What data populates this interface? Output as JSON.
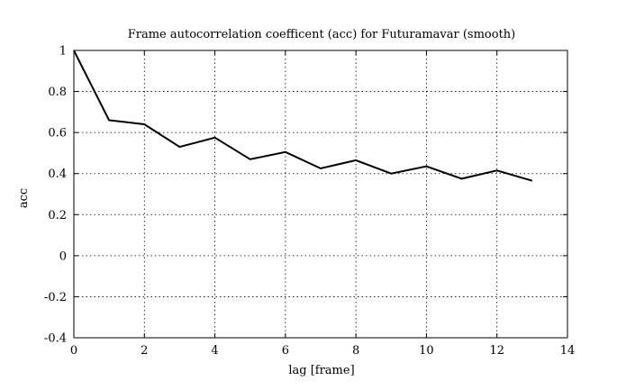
{
  "chart_data": {
    "type": "line",
    "title": "Frame autocorrelation coefficent (acc) for Futuramavar (smooth)",
    "xlabel": "lag [frame]",
    "ylabel": "acc",
    "xlim": [
      0,
      14
    ],
    "ylim": [
      -0.4,
      1
    ],
    "xticks": [
      0,
      2,
      4,
      6,
      8,
      10,
      12,
      14
    ],
    "yticks": [
      -0.4,
      -0.2,
      0,
      0.2,
      0.4,
      0.6,
      0.8,
      1
    ],
    "xtick_labels": [
      "0",
      "2",
      "4",
      "6",
      "8",
      "10",
      "12",
      "14"
    ],
    "ytick_labels": [
      "-0.4",
      "-0.2",
      "0",
      "0.2",
      "0.4",
      "0.6",
      "0.8",
      "1"
    ],
    "grid": true,
    "series": [
      {
        "x": [
          0,
          1,
          2,
          3,
          4,
          5,
          6,
          7,
          8,
          9,
          10,
          11,
          12,
          13
        ],
        "values": [
          1.0,
          0.66,
          0.64,
          0.53,
          0.575,
          0.47,
          0.505,
          0.425,
          0.465,
          0.4,
          0.435,
          0.375,
          0.415,
          0.365
        ]
      }
    ],
    "colors": {
      "line": "#000000",
      "grid": "#000000",
      "background": "#ffffff"
    }
  }
}
